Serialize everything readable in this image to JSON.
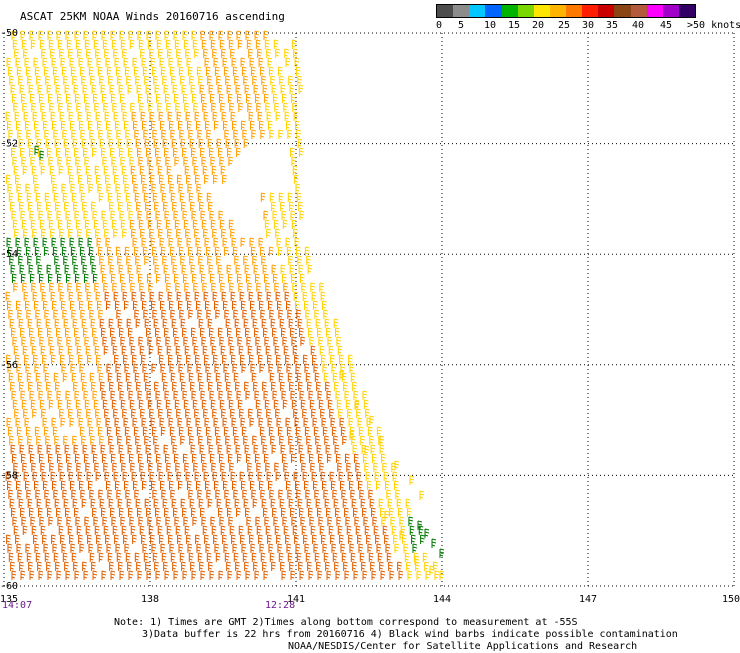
{
  "title": "ASCAT 25KM NOAA Winds 20160716 ascending",
  "legend": {
    "colors": [
      "#4d4d4d",
      "#8c8c8c",
      "#00c8ff",
      "#0064ff",
      "#00b400",
      "#7ad700",
      "#ffe600",
      "#ffb400",
      "#ff7800",
      "#ff1e00",
      "#c80000",
      "#8b4513",
      "#b45a3c",
      "#ff00ff",
      "#a000c8",
      "#320064"
    ],
    "labels": [
      "0",
      "5",
      "10",
      "15",
      "20",
      "25",
      "30",
      "35",
      "40",
      "45",
      ">50 knots"
    ]
  },
  "axes": {
    "lon_labels": [
      "135",
      "138",
      "141",
      "144",
      "147",
      "150"
    ],
    "lat_labels": [
      "-50",
      "-52",
      "-54",
      "-56",
      "-58",
      "-60"
    ]
  },
  "times": [
    {
      "label": "14:07"
    },
    {
      "label": "12:28"
    }
  ],
  "notes": {
    "line1": "Note: 1) Times are GMT 2)Times along bottom correspond to measurement at -55S",
    "line2": "3)Data buffer is 22 hrs from 20160716 4) Black wind barbs indicate possible contamination",
    "line3": "NOAA/NESDIS/Center for Satellite Applications and Research"
  },
  "barb_colors": {
    "yellow": "#ffd200",
    "orange": "#ffa000",
    "dark_orange": "#e06000",
    "green": "#007800"
  }
}
